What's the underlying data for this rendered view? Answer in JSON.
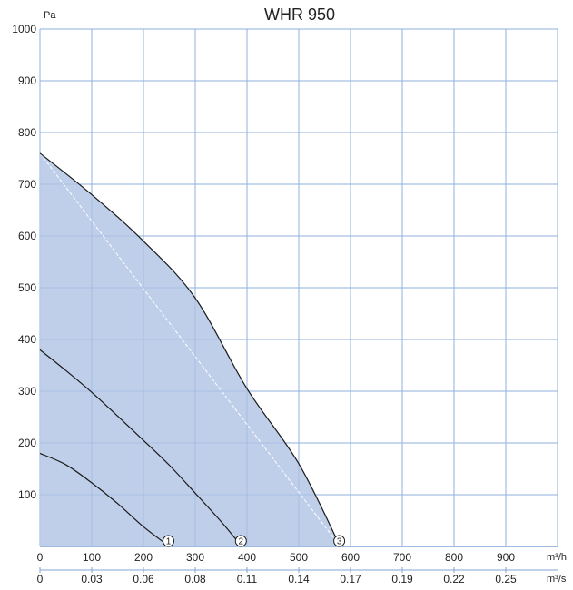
{
  "chart_data": {
    "type": "area",
    "title": "WHR 950",
    "y_unit": "Pa",
    "x_unit": "m³/h",
    "x2_unit": "m³/s",
    "xlim": [
      0,
      1000
    ],
    "ylim": [
      0,
      1000
    ],
    "x_ticks": [
      "0",
      "100",
      "200",
      "300",
      "400",
      "500",
      "600",
      "700",
      "800",
      "900"
    ],
    "x2_ticks": [
      "0",
      "0.03",
      "0.06",
      "0.08",
      "0.11",
      "0.14",
      "0.17",
      "0.19",
      "0.22",
      "0.25"
    ],
    "y_ticks": [
      "100",
      "200",
      "300",
      "400",
      "500",
      "600",
      "700",
      "800",
      "900",
      "1000"
    ],
    "grid": true,
    "colors": {
      "fill": "#bccbe8",
      "grid": "#8fb3dd",
      "curve": "#1a1a1a",
      "axis": "#7fa6d6",
      "diagonal": "#ffffff"
    },
    "series": [
      {
        "name": "1",
        "x": [
          0,
          50,
          100,
          150,
          200,
          250
        ],
        "y": [
          180,
          158,
          123,
          83,
          38,
          0
        ]
      },
      {
        "name": "2",
        "x": [
          0,
          50,
          100,
          150,
          200,
          250,
          300,
          350,
          390
        ],
        "y": [
          380,
          340,
          298,
          252,
          205,
          157,
          103,
          48,
          0
        ]
      },
      {
        "name": "3",
        "x": [
          0,
          100,
          200,
          300,
          400,
          500,
          580
        ],
        "y": [
          760,
          680,
          590,
          480,
          305,
          160,
          0
        ]
      }
    ],
    "diagonal": {
      "x": [
        0,
        580
      ],
      "y": [
        760,
        0
      ]
    }
  }
}
